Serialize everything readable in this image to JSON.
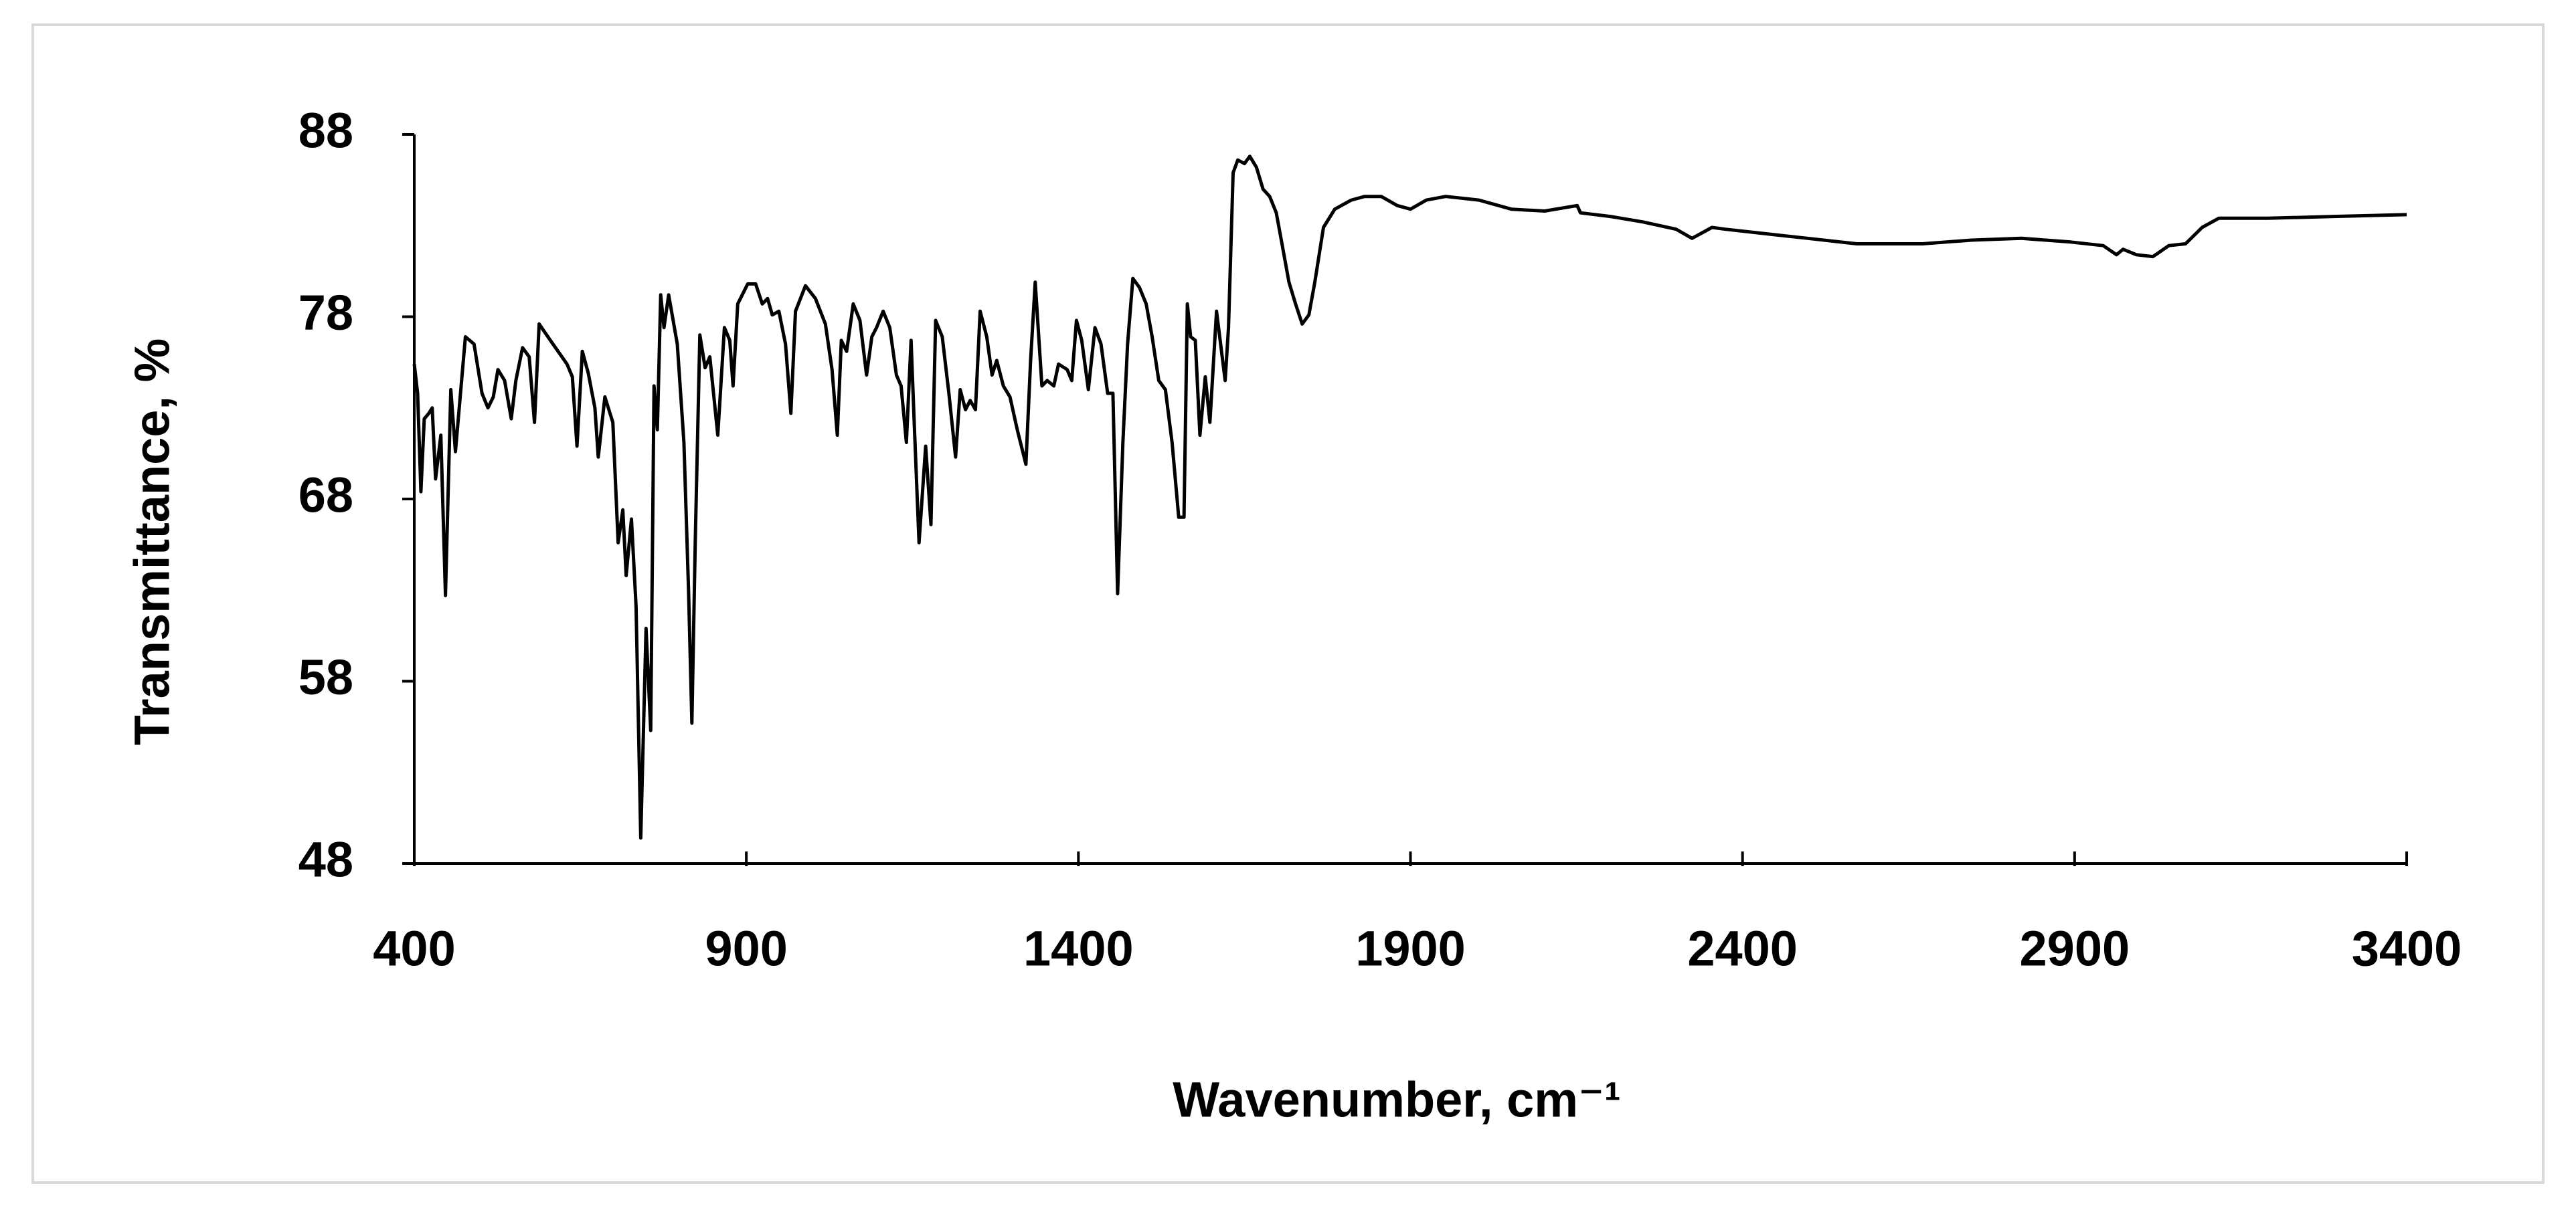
{
  "chart_data": {
    "type": "line",
    "xlabel": "Wavenumber, cm⁻¹",
    "ylabel": "Transmittance, %",
    "color": "#000000",
    "grid": false,
    "xlim": [
      400,
      3400
    ],
    "xticks": [
      400,
      900,
      1400,
      1900,
      2400,
      2900,
      3400
    ],
    "ylim": [
      48,
      88
    ],
    "yticks": [
      48,
      58,
      68,
      78,
      88
    ],
    "x": [
      400,
      405,
      410,
      415,
      422,
      427,
      432,
      440,
      447,
      455,
      462,
      477,
      490,
      502,
      511,
      519,
      526,
      536,
      546,
      553,
      563,
      573,
      581,
      588,
      605,
      630,
      638,
      645,
      653,
      662,
      672,
      677,
      687,
      699,
      707,
      714,
      719,
      727,
      734,
      741,
      749,
      756,
      761,
      766,
      771,
      776,
      783,
      796,
      806,
      813,
      818,
      823,
      830,
      838,
      845,
      857,
      867,
      875,
      880,
      887,
      902,
      914,
      924,
      932,
      939,
      949,
      959,
      967,
      974,
      989,
      1004,
      1019,
      1029,
      1037,
      1043,
      1051,
      1061,
      1071,
      1081,
      1089,
      1096,
      1106,
      1116,
      1126,
      1133,
      1141,
      1148,
      1153,
      1160,
      1170,
      1178,
      1185,
      1195,
      1205,
      1215,
      1222,
      1230,
      1237,
      1245,
      1252,
      1262,
      1270,
      1277,
      1287,
      1297,
      1308,
      1321,
      1328,
      1335,
      1345,
      1353,
      1363,
      1370,
      1383,
      1390,
      1397,
      1405,
      1415,
      1425,
      1434,
      1444,
      1452,
      1459,
      1467,
      1474,
      1482,
      1492,
      1502,
      1511,
      1521,
      1531,
      1541,
      1551,
      1559,
      1564,
      1569,
      1576,
      1583,
      1591,
      1598,
      1608,
      1621,
      1626,
      1633,
      1640,
      1650,
      1658,
      1668,
      1678,
      1688,
      1698,
      1707,
      1717,
      1727,
      1737,
      1747,
      1756,
      1769,
      1786,
      1811,
      1831,
      1856,
      1880,
      1900,
      1924,
      1953,
      2003,
      2052,
      2102,
      2151,
      2156,
      2201,
      2250,
      2300,
      2324,
      2354,
      2374,
      2448,
      2498,
      2572,
      2671,
      2745,
      2820,
      2894,
      2943,
      2963,
      2973,
      2993,
      3018,
      3042,
      3067,
      3092,
      3117,
      3191,
      3290,
      3400
    ],
    "values": [
      75.4,
      73.8,
      68.4,
      72.4,
      72.7,
      73,
      69.1,
      71.5,
      62.7,
      74,
      70.6,
      76.9,
      76.5,
      73.8,
      73,
      73.6,
      75.1,
      74.5,
      72.4,
      74.5,
      76.3,
      75.8,
      72.2,
      77.6,
      76.7,
      75.4,
      74.7,
      70.9,
      76.1,
      74.9,
      73,
      70.3,
      73.6,
      72.2,
      65.6,
      67.4,
      63.8,
      66.9,
      62.1,
      49.4,
      60.9,
      55.3,
      74.2,
      71.8,
      79.2,
      77.4,
      79.2,
      76.5,
      71.1,
      63,
      55.7,
      65.6,
      77,
      75.2,
      75.8,
      71.5,
      77.4,
      76.7,
      74.2,
      78.7,
      79.8,
      79.8,
      78.7,
      79,
      78.1,
      78.3,
      76.5,
      72.7,
      78.3,
      79.7,
      79,
      77.6,
      75.1,
      71.5,
      76.7,
      76.1,
      78.7,
      77.8,
      74.8,
      76.9,
      77.4,
      78.3,
      77.4,
      74.8,
      74.2,
      71.1,
      76.7,
      72,
      65.6,
      70.9,
      66.6,
      77.8,
      76.9,
      73.8,
      70.3,
      74,
      72.9,
      73.4,
      72.9,
      78.3,
      76.9,
      74.8,
      75.6,
      74.2,
      73.6,
      71.8,
      69.9,
      75.6,
      79.9,
      74.2,
      74.5,
      74.2,
      75.4,
      75.1,
      74.5,
      77.8,
      76.7,
      74,
      77.4,
      76.5,
      73.8,
      73.8,
      62.8,
      71.1,
      76.5,
      80.1,
      79.6,
      78.7,
      76.9,
      74.5,
      74,
      71.1,
      67,
      67,
      78.7,
      76.9,
      76.7,
      71.5,
      74.7,
      72.2,
      78.3,
      74.5,
      77.4,
      85.9,
      86.6,
      86.4,
      86.8,
      86.2,
      85,
      84.6,
      83.7,
      81.9,
      79.9,
      78.7,
      77.6,
      78.1,
      79.9,
      82.9,
      83.9,
      84.4,
      84.6,
      84.6,
      84.1,
      83.9,
      84.4,
      84.6,
      84.4,
      83.9,
      83.8,
      84.1,
      83.7,
      83.5,
      83.2,
      82.8,
      82.3,
      82.9,
      82.8,
      82.5,
      82.3,
      82,
      82,
      82.2,
      82.3,
      82.1,
      81.9,
      81.4,
      81.7,
      81.4,
      81.3,
      81.9,
      82,
      82.9,
      83.4,
      83.4,
      83.5,
      83.6
    ]
  }
}
